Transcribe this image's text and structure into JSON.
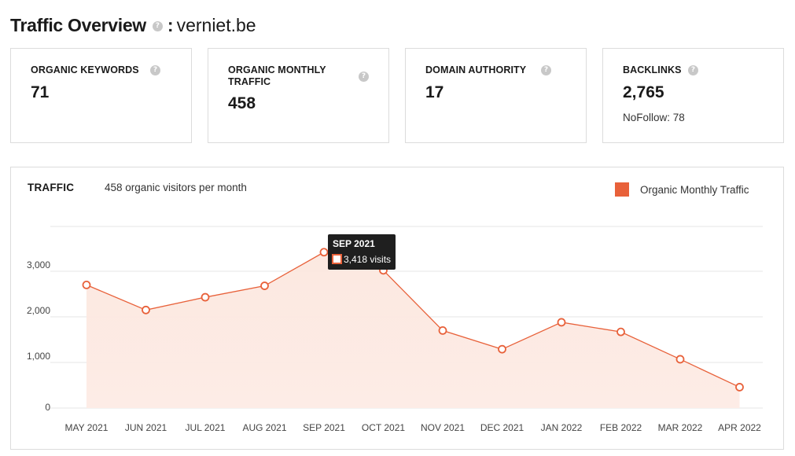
{
  "header": {
    "title": "Traffic Overview",
    "help_glyph": "?",
    "separator": ":",
    "domain": "verniet.be"
  },
  "cards": [
    {
      "label": "ORGANIC KEYWORDS",
      "value": "71",
      "help_glyph": "?"
    },
    {
      "label": "ORGANIC MONTHLY TRAFFIC",
      "value": "458",
      "help_glyph": "?"
    },
    {
      "label": "DOMAIN AUTHORITY",
      "value": "17",
      "help_glyph": "?"
    },
    {
      "label": "BACKLINKS",
      "value": "2,765",
      "sub": "NoFollow: 78",
      "help_glyph": "?"
    }
  ],
  "traffic": {
    "label": "TRAFFIC",
    "subtitle": "458 organic visitors per month",
    "legend_label": "Organic Monthly Traffic",
    "tooltip": {
      "title": "SEP 2021",
      "text": "3,418 visits"
    }
  },
  "colors": {
    "accent": "#e8613a",
    "area_top": "#fce6dd",
    "area_bottom": "#fdece6",
    "grid": "#e4e4e4",
    "tooltip_bg": "#1f1f1f"
  },
  "icons": {
    "help": "question-circle-icon"
  },
  "chart_data": {
    "type": "area",
    "categories": [
      "MAY 2021",
      "JUN 2021",
      "JUL 2021",
      "AUG 2021",
      "SEP 2021",
      "OCT 2021",
      "NOV 2021",
      "DEC 2021",
      "JAN 2022",
      "FEB 2022",
      "MAR 2022",
      "APR 2022"
    ],
    "series": [
      {
        "name": "Organic Monthly Traffic",
        "values": [
          2700,
          2150,
          2430,
          2680,
          3418,
          3020,
          1700,
          1290,
          1880,
          1670,
          1070,
          458
        ]
      }
    ],
    "yticks": [
      0,
      1000,
      2000,
      3000
    ],
    "ytick_labels": [
      "0",
      "1,000",
      "2,000",
      "3,000"
    ],
    "ylim": [
      0,
      4000
    ],
    "grid": true,
    "legend": "top-right",
    "highlight_index": 4
  }
}
